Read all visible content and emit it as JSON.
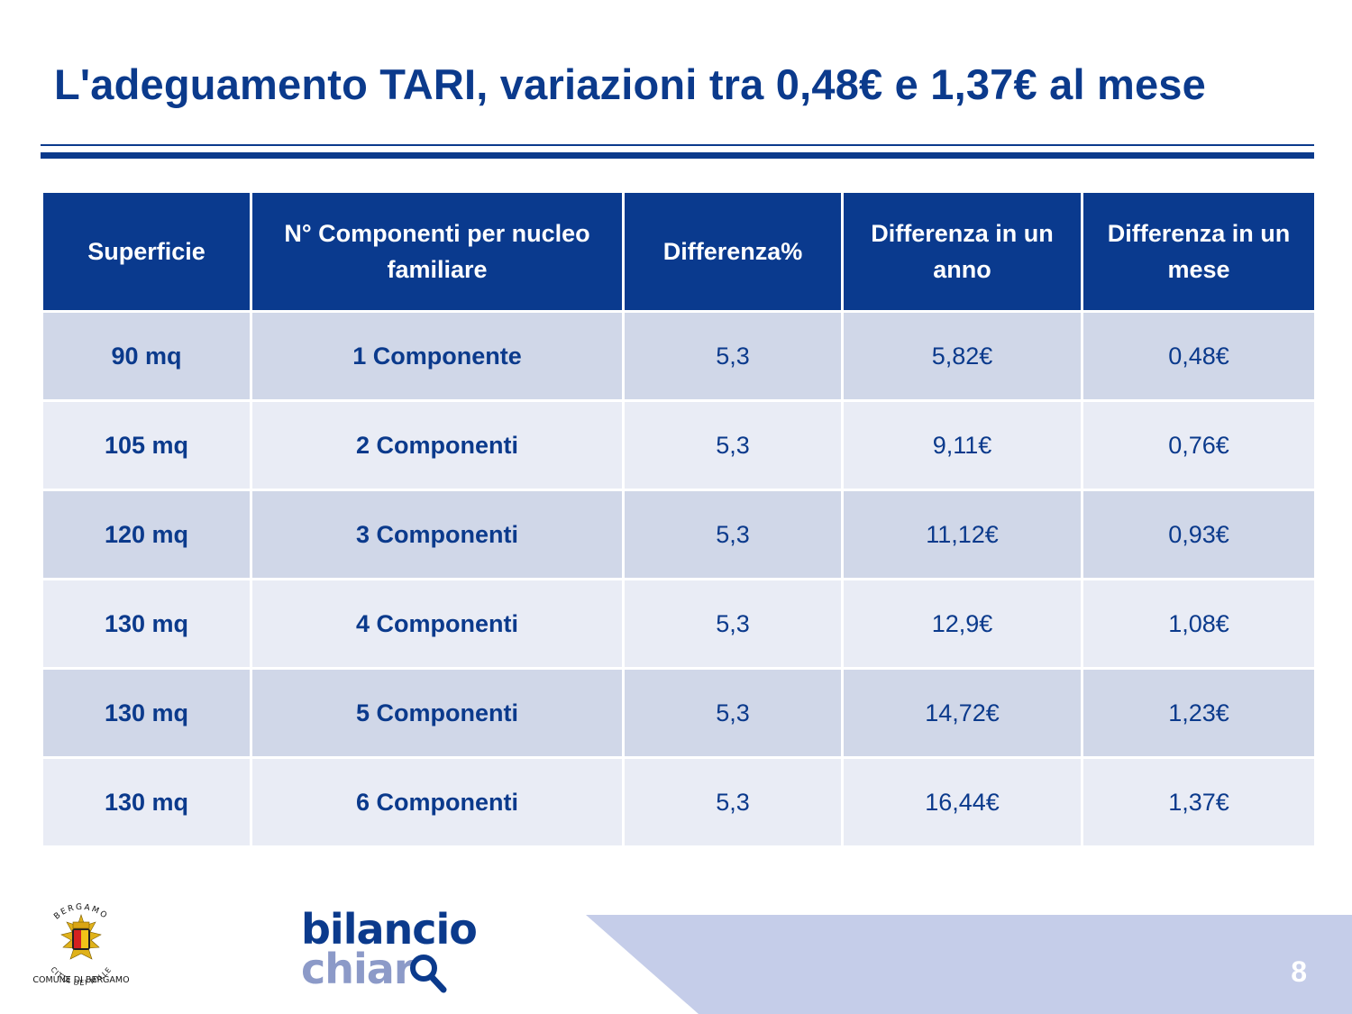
{
  "title": "L'adeguamento TARI, variazioni tra 0,48€ e 1,37€ al mese",
  "table": {
    "headers": [
      "Superficie",
      "N° Componenti per nucleo familiare",
      "Differenza%",
      "Differenza in un anno",
      "Differenza in un mese"
    ],
    "rows": [
      [
        "90 mq",
        "1 Componente",
        "5,3",
        "5,82€",
        "0,48€"
      ],
      [
        "105 mq",
        "2 Componenti",
        "5,3",
        "9,11€",
        "0,76€"
      ],
      [
        "120 mq",
        "3 Componenti",
        "5,3",
        "11,12€",
        "0,93€"
      ],
      [
        "130 mq",
        "4 Componenti",
        "5,3",
        "12,9€",
        "1,08€"
      ],
      [
        "130 mq",
        "5 Componenti",
        "5,3",
        "14,72€",
        "1,23€"
      ],
      [
        "130 mq",
        "6 Componenti",
        "5,3",
        "16,44€",
        "1,37€"
      ]
    ]
  },
  "footer": {
    "crest_top_text": "BERGAMO",
    "crest_bottom_text": "CITTÀ DEI MILLE",
    "crest_caption": "COMUNE DI BERGAMO",
    "logo_line1": "bilancio",
    "logo_line2": "chiar",
    "page_number": "8"
  },
  "colors": {
    "primary": "#0b3a8c",
    "header_fill": "#0a3a8e",
    "row_dark": "#d0d7e8",
    "row_light": "#e9ecf5",
    "footer_band": "#c5cde9",
    "logo_light": "#8c9ac8"
  }
}
